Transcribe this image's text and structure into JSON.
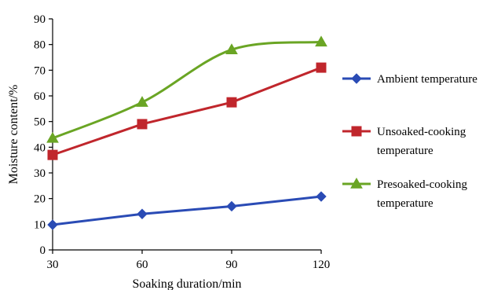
{
  "chart_data": {
    "type": "line",
    "title": "",
    "xlabel": "Soaking duration/min",
    "ylabel": "Moisture content/%",
    "x": [
      30,
      60,
      90,
      120
    ],
    "x_tick_labels": [
      "30",
      "60",
      "90",
      "120"
    ],
    "ylim": [
      0,
      90
    ],
    "y_ticks": [
      0,
      10,
      20,
      30,
      40,
      50,
      60,
      70,
      80,
      90
    ],
    "y_tick_labels": [
      "0",
      "10",
      "20",
      "30",
      "40",
      "50",
      "60",
      "70",
      "80",
      "90"
    ],
    "grid": false,
    "legend_position": "right",
    "series": [
      {
        "name": "Ambient temperature",
        "legend_lines": [
          "Ambient temperature"
        ],
        "color": "#2a4bb5",
        "marker": "diamond",
        "smooth": false,
        "values": [
          9.8,
          14,
          17,
          20.8
        ]
      },
      {
        "name": "Unsoaked-cooking temperature",
        "legend_lines": [
          "Unsoaked-cooking",
          "temperature"
        ],
        "color": "#c0262c",
        "marker": "square",
        "smooth": false,
        "values": [
          37,
          49,
          57.5,
          71
        ]
      },
      {
        "name": "Presoaked-cooking temperature",
        "legend_lines": [
          "Presoaked-cooking",
          "temperature"
        ],
        "color": "#6aa524",
        "marker": "triangle",
        "smooth": true,
        "values": [
          43.5,
          57.5,
          78,
          81
        ]
      }
    ]
  }
}
